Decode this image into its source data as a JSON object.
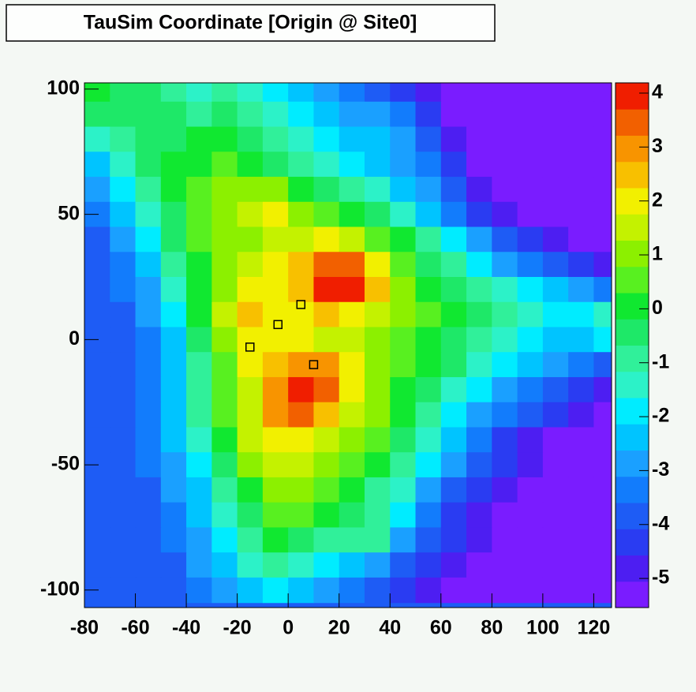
{
  "chart_data": {
    "type": "heatmap",
    "title": "TauSim Coordinate [Origin @ Site0]",
    "x": [
      -75,
      -65,
      -55,
      -45,
      -35,
      -25,
      -15,
      -5,
      5,
      15,
      25,
      35,
      45,
      55,
      65,
      75,
      85,
      95,
      105,
      115,
      125
    ],
    "y": [
      100,
      90,
      80,
      70,
      60,
      50,
      40,
      30,
      20,
      10,
      0,
      -10,
      -20,
      -30,
      -40,
      -50,
      -60,
      -70,
      -80,
      -90,
      -100
    ],
    "z": [
      [
        0,
        -0.5,
        -0.5,
        -1,
        -1.5,
        -1,
        -1.5,
        -2,
        -2.5,
        -3,
        -3.5,
        -4,
        -4.5,
        -5,
        -5.3,
        -5.3,
        -5.3,
        -5.3,
        -5.3,
        -5.3,
        -5.3
      ],
      [
        -0.5,
        -0.5,
        -0.5,
        -0.5,
        -1,
        -0.5,
        -1,
        -1.5,
        -2,
        -2.5,
        -3,
        -3,
        -3.5,
        -4.5,
        -5.2,
        -5.3,
        -5.3,
        -5.3,
        -5.3,
        -5.3,
        -5.3
      ],
      [
        -1.5,
        -1,
        -0.5,
        -0.5,
        0,
        0,
        -0.5,
        -1,
        -1.5,
        -2,
        -2.5,
        -2.5,
        -3,
        -4,
        -5,
        -5.3,
        -5.3,
        -5.3,
        -5.3,
        -5.3,
        -5.3
      ],
      [
        -2.5,
        -1.5,
        -0.5,
        0,
        0,
        0.5,
        0,
        -0.5,
        -1,
        -1.5,
        -2,
        -2.5,
        -3,
        -3.5,
        -4.5,
        -5.2,
        -5.3,
        -5.3,
        -5.3,
        -5.3,
        -5.3
      ],
      [
        -3,
        -2,
        -1,
        0,
        0.5,
        1,
        1,
        1,
        0,
        -0.5,
        -1,
        -1.5,
        -2.5,
        -3,
        -4,
        -5,
        -5.3,
        -5.3,
        -5.3,
        -5.3,
        -5.3
      ],
      [
        -3.5,
        -2.5,
        -1.5,
        -0.5,
        0.5,
        1,
        1.5,
        2,
        1,
        0.5,
        0,
        -0.5,
        -1.5,
        -2.5,
        -3.5,
        -4.5,
        -5,
        -5.3,
        -5.3,
        -5.3,
        -5.3
      ],
      [
        -4,
        -3,
        -2,
        -0.5,
        0.5,
        1,
        1,
        1.5,
        1.5,
        2,
        1.5,
        0.5,
        0,
        -1,
        -2,
        -3,
        -4,
        -4.5,
        -5,
        -5.2,
        -5.3
      ],
      [
        -4,
        -3.5,
        -2.5,
        -1,
        0,
        1,
        1.5,
        2,
        2.5,
        3.5,
        3.5,
        2,
        0.5,
        -0.5,
        -1,
        -2,
        -3,
        -3.5,
        -4,
        -4.5,
        -5
      ],
      [
        -4,
        -3.5,
        -3,
        -1.5,
        0,
        1,
        2,
        2,
        2.5,
        4,
        4,
        2.5,
        1,
        0,
        -0.5,
        -1,
        -1.5,
        -2,
        -2.5,
        -3,
        -3.5
      ],
      [
        -4,
        -4,
        -3,
        -2,
        0,
        1.5,
        2.5,
        2,
        2,
        2.5,
        2,
        1.5,
        1,
        0.5,
        0,
        -0.5,
        -1,
        -1.5,
        -2,
        -2,
        -1.5
      ],
      [
        -4,
        -4,
        -3.5,
        -2.5,
        -0.5,
        1,
        2,
        2,
        2,
        1.5,
        1.5,
        1,
        0.5,
        0,
        -0.5,
        -1,
        -1.5,
        -2,
        -2.5,
        -2.5,
        -2
      ],
      [
        -4,
        -4,
        -3.5,
        -2.5,
        -1,
        0.5,
        2,
        2.5,
        3,
        3,
        2,
        1,
        0.5,
        0,
        -0.5,
        -1.5,
        -2,
        -2.5,
        -3,
        -3.5,
        -4
      ],
      [
        -4,
        -4,
        -3.5,
        -2.5,
        -1,
        0.5,
        1.5,
        3,
        4,
        3.5,
        2,
        1,
        0,
        -0.5,
        -1.5,
        -2,
        -3,
        -3.5,
        -4,
        -4.5,
        -5
      ],
      [
        -4,
        -4,
        -3.5,
        -2.5,
        -1,
        0.5,
        1.5,
        3,
        3.5,
        2.5,
        1.5,
        1,
        0,
        -1,
        -2,
        -3,
        -3.5,
        -4,
        -4.5,
        -5,
        -5.2
      ],
      [
        -4,
        -4,
        -3.5,
        -2.5,
        -1.5,
        0,
        1.5,
        2,
        2,
        1.5,
        1,
        0.5,
        -0.5,
        -1.5,
        -2.5,
        -3.5,
        -4.5,
        -5,
        -5.2,
        -5.3,
        -5.3
      ],
      [
        -4,
        -4,
        -3.5,
        -3,
        -2,
        -0.5,
        1,
        1.5,
        1.5,
        1,
        0.5,
        0,
        -1,
        -2,
        -3,
        -4,
        -4.5,
        -5,
        -5.3,
        -5.3,
        -5.3
      ],
      [
        -4,
        -4,
        -4,
        -3,
        -2.5,
        -1,
        0,
        1,
        1,
        0.5,
        0,
        -1,
        -1.5,
        -3,
        -4,
        -4.5,
        -5,
        -5.3,
        -5.3,
        -5.3,
        -5.3
      ],
      [
        -4,
        -4,
        -4,
        -3.5,
        -2.5,
        -1.5,
        -0.5,
        0.5,
        0.5,
        0,
        -0.5,
        -1,
        -2,
        -3.5,
        -4.5,
        -5,
        -5.3,
        -5.3,
        -5.3,
        -5.3,
        -5.3
      ],
      [
        -4,
        -4,
        -4,
        -3.5,
        -3,
        -2,
        -1,
        0,
        -0.5,
        -1,
        -1,
        -1,
        -3,
        -4,
        -4.5,
        -5,
        -5.3,
        -5.3,
        -5.3,
        -5.3,
        -5.3
      ],
      [
        -4,
        -4,
        -4,
        -4,
        -3,
        -2.5,
        -1.5,
        -1,
        -1.5,
        -2,
        -2.5,
        -3,
        -4,
        -4.5,
        -5,
        -5.3,
        -5.3,
        -5.3,
        -5.3,
        -5.3,
        -5.3
      ],
      [
        -4,
        -4,
        -4,
        -4,
        -3.5,
        -3,
        -2.5,
        -2,
        -2.5,
        -3,
        -3.5,
        -4,
        -4.5,
        -5,
        -5.3,
        -5.3,
        -5.3,
        -5.3,
        -5.3,
        -5.3,
        -5.3
      ]
    ],
    "xlim": [
      -80,
      127
    ],
    "ylim": [
      -107,
      102.5
    ],
    "xticks": [
      -80,
      -60,
      -40,
      -20,
      0,
      20,
      40,
      60,
      80,
      100,
      120
    ],
    "yticks": [
      -100,
      -50,
      0,
      50,
      100
    ],
    "zlim": [
      -5.54,
      4.19
    ],
    "zticks": [
      -5,
      -4,
      -3,
      -2,
      -1,
      0,
      1,
      2,
      3,
      4
    ],
    "colors": [
      "#7a1cff",
      "#4d1ef2",
      "#2a3cf2",
      "#1e5cf5",
      "#127cfc",
      "#1aa0ff",
      "#00c4ff",
      "#00ecff",
      "#2cf2c8",
      "#30f09a",
      "#1ee868",
      "#10e830",
      "#58f020",
      "#8cf000",
      "#c4f200",
      "#f2f000",
      "#f8c000",
      "#f89400",
      "#f26000",
      "#f01e00"
    ],
    "markers": {
      "x": [
        -15,
        -4,
        5,
        10
      ],
      "y": [
        -3,
        6,
        14,
        -10
      ]
    }
  }
}
